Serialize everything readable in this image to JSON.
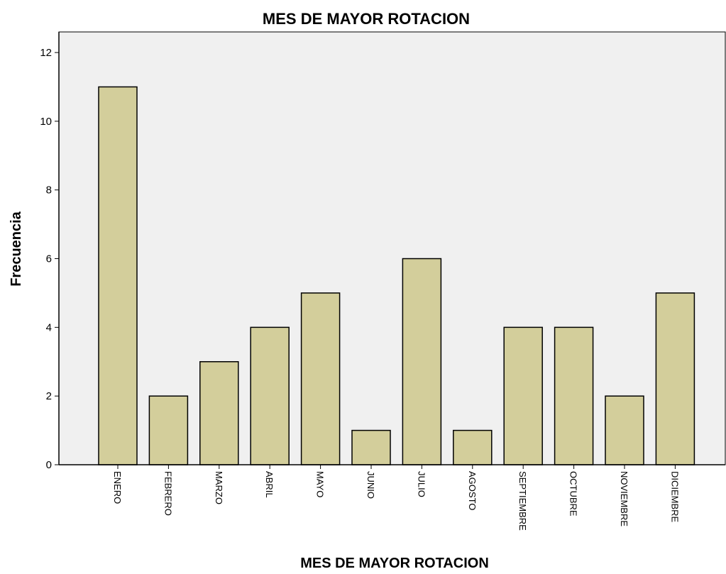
{
  "chart_data": {
    "type": "bar",
    "title": "MES DE MAYOR ROTACION",
    "xlabel": "MES DE MAYOR ROTACION",
    "ylabel": "Frecuencia",
    "categories": [
      "ENERO",
      "FEBRERO",
      "MARZO",
      "ABRIL",
      "MAYO",
      "JUNIO",
      "JULIO",
      "AGOSTO",
      "SEPTIEMBRE",
      "OCTUBRE",
      "NOVIEMBRE",
      "DICIEMBRE"
    ],
    "values": [
      11,
      2,
      3,
      4,
      5,
      1,
      6,
      1,
      4,
      4,
      2,
      5
    ],
    "ylim": [
      0,
      12.6
    ],
    "yticks": [
      0,
      2,
      4,
      6,
      8,
      10,
      12
    ],
    "grid": false,
    "colors": {
      "bar_fill": "#d3ce9b",
      "bar_stroke": "#000000",
      "plot_background": "#f0f0f0",
      "axis": "#000000"
    }
  }
}
